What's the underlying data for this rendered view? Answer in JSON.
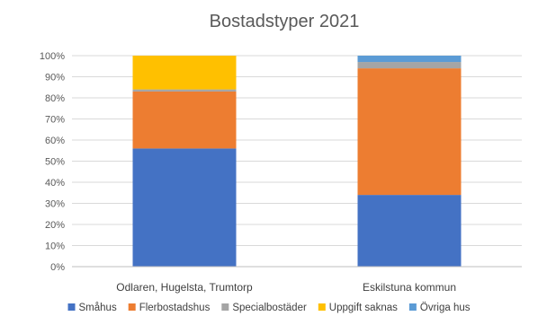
{
  "chart_data": {
    "type": "bar",
    "stacked": true,
    "title": "Bostadstyper 2021",
    "xlabel": "",
    "ylabel": "",
    "ylim": [
      0,
      100
    ],
    "yticks": [
      "0%",
      "10%",
      "20%",
      "30%",
      "40%",
      "50%",
      "60%",
      "70%",
      "80%",
      "90%",
      "100%"
    ],
    "grid": true,
    "legend_position": "bottom",
    "categories": [
      "Odlaren, Hugelsta, Trumtorp",
      "Eskilstuna kommun"
    ],
    "series": [
      {
        "name": "Småhus",
        "color": "#4472c4",
        "values": [
          56,
          34
        ]
      },
      {
        "name": "Flerbostadshus",
        "color": "#ed7d31",
        "values": [
          27,
          60
        ]
      },
      {
        "name": "Specialbostäder",
        "color": "#a5a5a5",
        "values": [
          1,
          3
        ]
      },
      {
        "name": "Uppgift saknas",
        "color": "#ffc000",
        "values": [
          16,
          0
        ]
      },
      {
        "name": "Övriga hus",
        "color": "#5b9bd5",
        "values": [
          0,
          3
        ]
      }
    ]
  }
}
